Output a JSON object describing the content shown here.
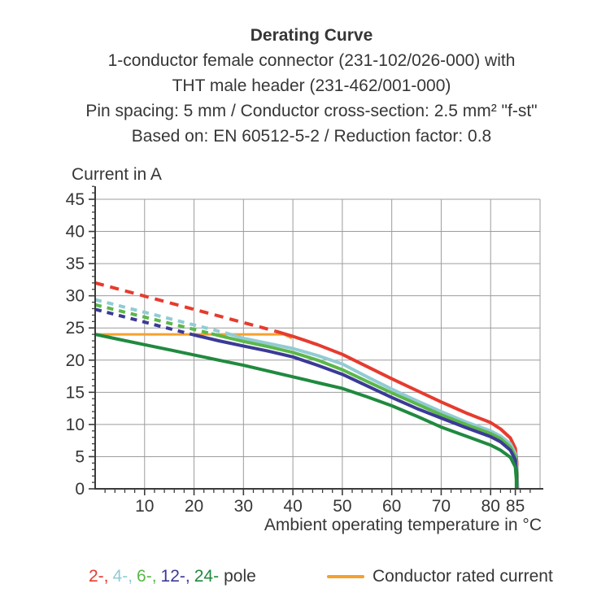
{
  "title": {
    "heading": "Derating Curve",
    "lines": [
      "1-conductor female connector (231-102/026-000) with",
      "THT male header (231-462/001-000)",
      "Pin spacing: 5 mm / Conductor cross-section: 2.5 mm² \"f-st\"",
      "Based on: EN 60512-5-2 / Reduction factor: 0.8"
    ]
  },
  "chart_data": {
    "type": "line",
    "title": "Derating Curve",
    "xlabel": "Ambient operating temperature in °C",
    "ylabel": "Current in A",
    "xlim": [
      0,
      90
    ],
    "ylim": [
      0,
      45
    ],
    "x_major_ticks": [
      10,
      20,
      30,
      40,
      50,
      60,
      70,
      80,
      85
    ],
    "x_minor_step": 2,
    "y_major_ticks": [
      0,
      5,
      10,
      15,
      20,
      25,
      30,
      35,
      40,
      45
    ],
    "y_minor_step": 1,
    "grid": true,
    "grid_color": "#9c9c9c",
    "axis_color": "#3b3b3b",
    "legend_position": "bottom",
    "note": "dashed segments = above conductor rated current (not permissible); solid = derated operating range",
    "series": [
      {
        "name": "conductor-rated-current",
        "label": "Conductor rated current",
        "color": "#f6a02d",
        "width": 3,
        "solid": [
          [
            0,
            24
          ],
          [
            38.2,
            24
          ],
          [
            39.8,
            23.4
          ]
        ]
      },
      {
        "name": "2-pole",
        "label": "2-",
        "color": "#e63b2e",
        "width": 4,
        "dash_pattern": "11 8",
        "dashed": [
          [
            0,
            32
          ],
          [
            36.5,
            24.5
          ]
        ],
        "solid": [
          [
            36.5,
            24.5
          ],
          [
            40,
            23.7
          ],
          [
            45,
            22.4
          ],
          [
            50,
            20.9
          ],
          [
            55,
            19.0
          ],
          [
            60,
            17.1
          ],
          [
            65,
            15.3
          ],
          [
            70,
            13.5
          ],
          [
            75,
            11.8
          ],
          [
            78,
            10.9
          ],
          [
            80,
            10.3
          ],
          [
            82,
            9.3
          ],
          [
            84,
            7.9
          ],
          [
            85,
            6.3
          ],
          [
            85.3,
            4.2
          ],
          [
            85.45,
            0
          ]
        ]
      },
      {
        "name": "4-pole",
        "label": "4-",
        "color": "#92cbd4",
        "width": 4,
        "dash_pattern": "8 7",
        "dashed": [
          [
            0,
            29.4
          ],
          [
            26.5,
            24.2
          ]
        ],
        "solid": [
          [
            26.5,
            24.2
          ],
          [
            30,
            23.4
          ],
          [
            35,
            22.6
          ],
          [
            40,
            21.8
          ],
          [
            45,
            20.7
          ],
          [
            50,
            19.4
          ],
          [
            55,
            17.4
          ],
          [
            60,
            15.5
          ],
          [
            65,
            13.7
          ],
          [
            70,
            12.0
          ],
          [
            75,
            10.4
          ],
          [
            80,
            9.0
          ],
          [
            82,
            8.2
          ],
          [
            84,
            7.0
          ],
          [
            85,
            5.5
          ],
          [
            85.35,
            3.0
          ],
          [
            85.4,
            0
          ]
        ]
      },
      {
        "name": "6-pole",
        "label": "6-",
        "color": "#5bb74a",
        "width": 4,
        "dash_pattern": "8 7",
        "dashed": [
          [
            0,
            28.6
          ],
          [
            23.5,
            24.1
          ]
        ],
        "solid": [
          [
            23.5,
            24.1
          ],
          [
            30,
            22.9
          ],
          [
            35,
            22.1
          ],
          [
            40,
            21.2
          ],
          [
            45,
            20.0
          ],
          [
            50,
            18.5
          ],
          [
            55,
            16.7
          ],
          [
            60,
            14.9
          ],
          [
            65,
            13.2
          ],
          [
            70,
            11.5
          ],
          [
            75,
            10.0
          ],
          [
            80,
            8.6
          ],
          [
            82,
            7.8
          ],
          [
            84,
            6.5
          ],
          [
            85,
            5.0
          ],
          [
            85.3,
            2.5
          ],
          [
            85.33,
            0
          ]
        ]
      },
      {
        "name": "12-pole",
        "label": "12-",
        "color": "#3b3a97",
        "width": 4,
        "dash_pattern": "8 7",
        "dashed": [
          [
            0,
            27.9
          ],
          [
            19.8,
            23.95
          ]
        ],
        "solid": [
          [
            19.8,
            23.95
          ],
          [
            25,
            23.0
          ],
          [
            30,
            22.2
          ],
          [
            35,
            21.4
          ],
          [
            40,
            20.5
          ],
          [
            45,
            19.2
          ],
          [
            50,
            17.8
          ],
          [
            55,
            16.0
          ],
          [
            60,
            14.2
          ],
          [
            65,
            12.5
          ],
          [
            70,
            11.0
          ],
          [
            75,
            9.5
          ],
          [
            80,
            8.1
          ],
          [
            82,
            7.3
          ],
          [
            84,
            6.0
          ],
          [
            85,
            4.5
          ],
          [
            85.25,
            2.0
          ],
          [
            85.28,
            0
          ]
        ]
      },
      {
        "name": "24-pole",
        "label": "24-",
        "color": "#208a3f",
        "width": 4,
        "solid": [
          [
            0,
            24
          ],
          [
            5,
            23.2
          ],
          [
            10,
            22.4
          ],
          [
            15,
            21.6
          ],
          [
            20,
            20.8
          ],
          [
            25,
            20.0
          ],
          [
            30,
            19.2
          ],
          [
            35,
            18.3
          ],
          [
            40,
            17.4
          ],
          [
            45,
            16.5
          ],
          [
            50,
            15.6
          ],
          [
            55,
            14.3
          ],
          [
            60,
            12.9
          ],
          [
            65,
            11.3
          ],
          [
            70,
            9.6
          ],
          [
            75,
            8.2
          ],
          [
            80,
            6.8
          ],
          [
            82,
            6.0
          ],
          [
            84,
            4.9
          ],
          [
            85,
            3.4
          ],
          [
            85.2,
            1.5
          ],
          [
            85.22,
            0
          ]
        ]
      }
    ]
  },
  "legend": {
    "poles": [
      {
        "label": "2-,",
        "color": "#e63b2e"
      },
      {
        "label": "4-,",
        "color": "#92cbd4"
      },
      {
        "label": "6-,",
        "color": "#5bb74a"
      },
      {
        "label": "12-,",
        "color": "#3b3a97"
      },
      {
        "label": "24-",
        "color": "#208a3f"
      }
    ],
    "suffix": "pole",
    "rated": {
      "label": "Conductor rated current",
      "color": "#f6a02d"
    }
  }
}
